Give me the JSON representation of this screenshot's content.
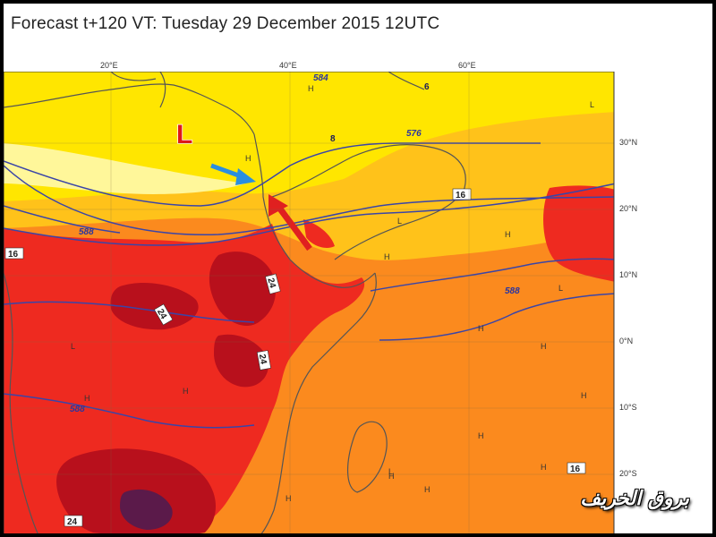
{
  "title": "Forecast t+120 VT: Tuesday 29 December 2015 12UTC",
  "longitude_labels": [
    {
      "lon": 20,
      "text": "20°E"
    },
    {
      "lon": 40,
      "text": "40°E"
    },
    {
      "lon": 60,
      "text": "60°E"
    }
  ],
  "latitude_labels": [
    {
      "lat": 30,
      "text": "30°N"
    },
    {
      "lat": 20,
      "text": "20°N"
    },
    {
      "lat": 10,
      "text": "10°N"
    },
    {
      "lat": 0,
      "text": "0°N"
    },
    {
      "lat": -10,
      "text": "10°S"
    },
    {
      "lat": -20,
      "text": "20°S"
    }
  ],
  "contour_labels": [
    "584",
    "576",
    "588",
    "588",
    "588",
    "6",
    "8",
    "16",
    "16",
    "16",
    "24",
    "24",
    "24",
    "24"
  ],
  "pressure_symbols": {
    "low": "L",
    "high": "H"
  },
  "low_pressure_marker": "L",
  "colors": {
    "band_pale": "#fff79a",
    "band_yellow": "#ffe600",
    "band_gold": "#ffc21a",
    "band_orange": "#fb8a1e",
    "band_red": "#ee2a20",
    "band_dark_red": "#b8101c",
    "band_purple": "#5b1a4a",
    "coast": "#555555",
    "contour": "#3a45a8",
    "low_marker": "#e01818",
    "arrow_blue": "#2a8ee0",
    "arrow_red": "#e02020"
  },
  "watermark": "بروق الخريف"
}
